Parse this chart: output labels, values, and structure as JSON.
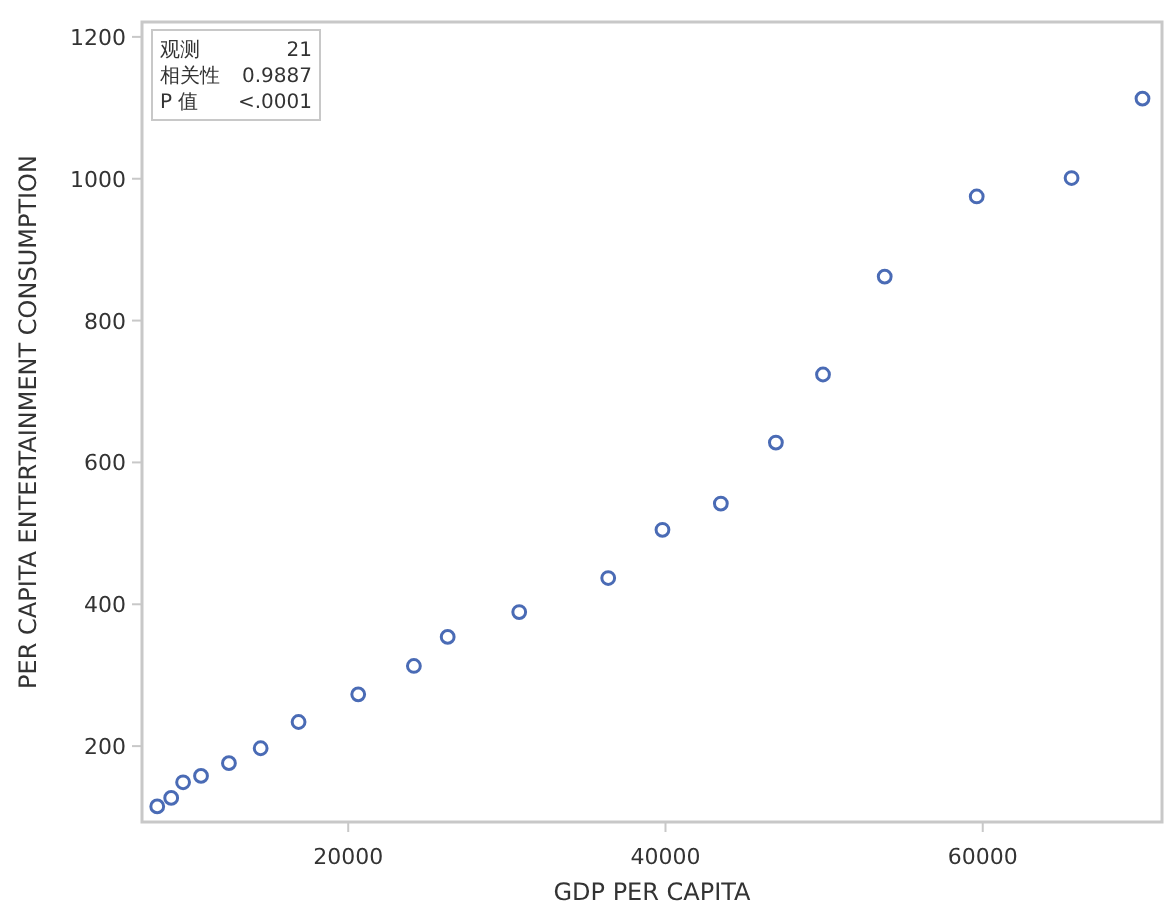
{
  "chart_data": {
    "type": "scatter",
    "xlabel": "GDP PER CAPITA",
    "ylabel": "PER CAPITA ENTERTAINMENT CONSUMPTION",
    "annotations": [
      "观测 21",
      "相关性 0.9887",
      "P 值 <.0001"
    ],
    "x": [
      7960,
      8840,
      9590,
      10720,
      12480,
      14480,
      16870,
      20630,
      24140,
      26270,
      30780,
      36390,
      39810,
      43490,
      46960,
      49930,
      53820,
      59620,
      65600,
      70070
    ],
    "series": [
      {
        "color": "#4a6bb5",
        "values": [
          115,
          127,
          149,
          158,
          176,
          197,
          234,
          273,
          313,
          354,
          389,
          437,
          505,
          542,
          628,
          724,
          862,
          975,
          1001,
          1113
        ]
      }
    ],
    "xlim": [
      7000,
      71300
    ],
    "ylim": [
      93,
      1221
    ],
    "xticks": [
      20000,
      40000,
      60000
    ],
    "yticks": [
      200,
      400,
      600,
      800,
      1000,
      1200
    ],
    "marker": "circle",
    "grid": false
  }
}
